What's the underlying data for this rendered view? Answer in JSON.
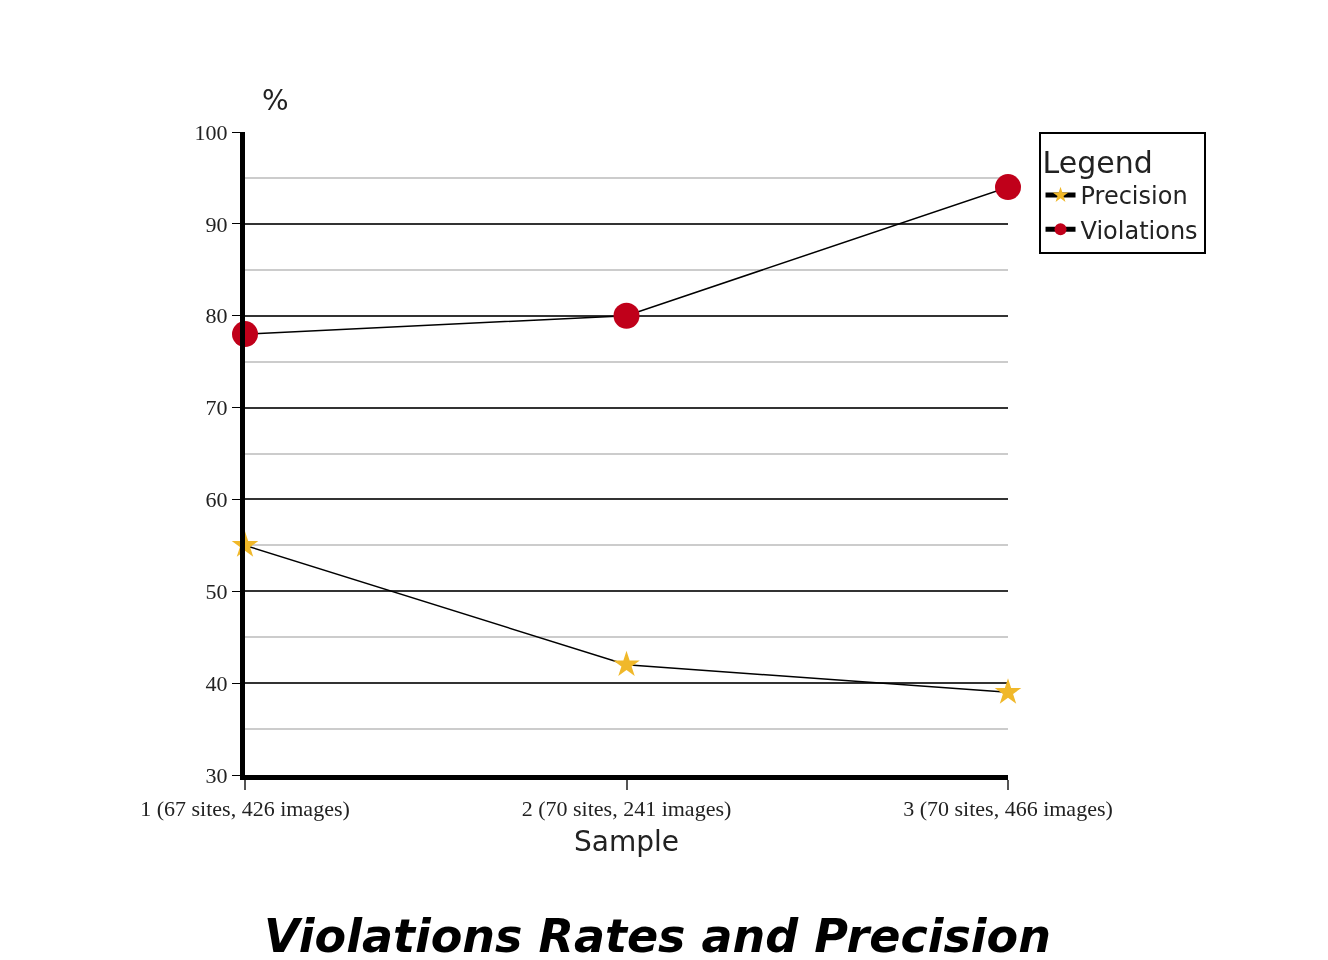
{
  "chart_data": {
    "type": "line",
    "title": "Violations Rates and Precision",
    "xlabel": "Sample",
    "ylabel": "%",
    "legend_title": "Legend",
    "categories": [
      "1 (67 sites, 426 images)",
      "2 (70 sites, 241 images)",
      "3 (70 sites, 466 images)"
    ],
    "series": [
      {
        "name": "Precision",
        "color": "#f0b82a",
        "marker": "star",
        "values": [
          55,
          42,
          39
        ]
      },
      {
        "name": "Violations",
        "color": "#c0001a",
        "marker": "circle",
        "values": [
          78,
          80,
          94
        ]
      }
    ],
    "ylim": [
      30,
      100
    ],
    "yticks": [
      30,
      {
        "value": 35,
        "label": null
      },
      40,
      {
        "value": 45,
        "label": null
      },
      50,
      {
        "value": 55,
        "label": null
      },
      60,
      {
        "value": 65,
        "label": null
      },
      70,
      {
        "value": 75,
        "label": null
      },
      80,
      {
        "value": 85,
        "label": null
      },
      90,
      {
        "value": 95,
        "label": null
      },
      100
    ],
    "grid": "y",
    "legend": "top right",
    "line_style": "solid"
  }
}
